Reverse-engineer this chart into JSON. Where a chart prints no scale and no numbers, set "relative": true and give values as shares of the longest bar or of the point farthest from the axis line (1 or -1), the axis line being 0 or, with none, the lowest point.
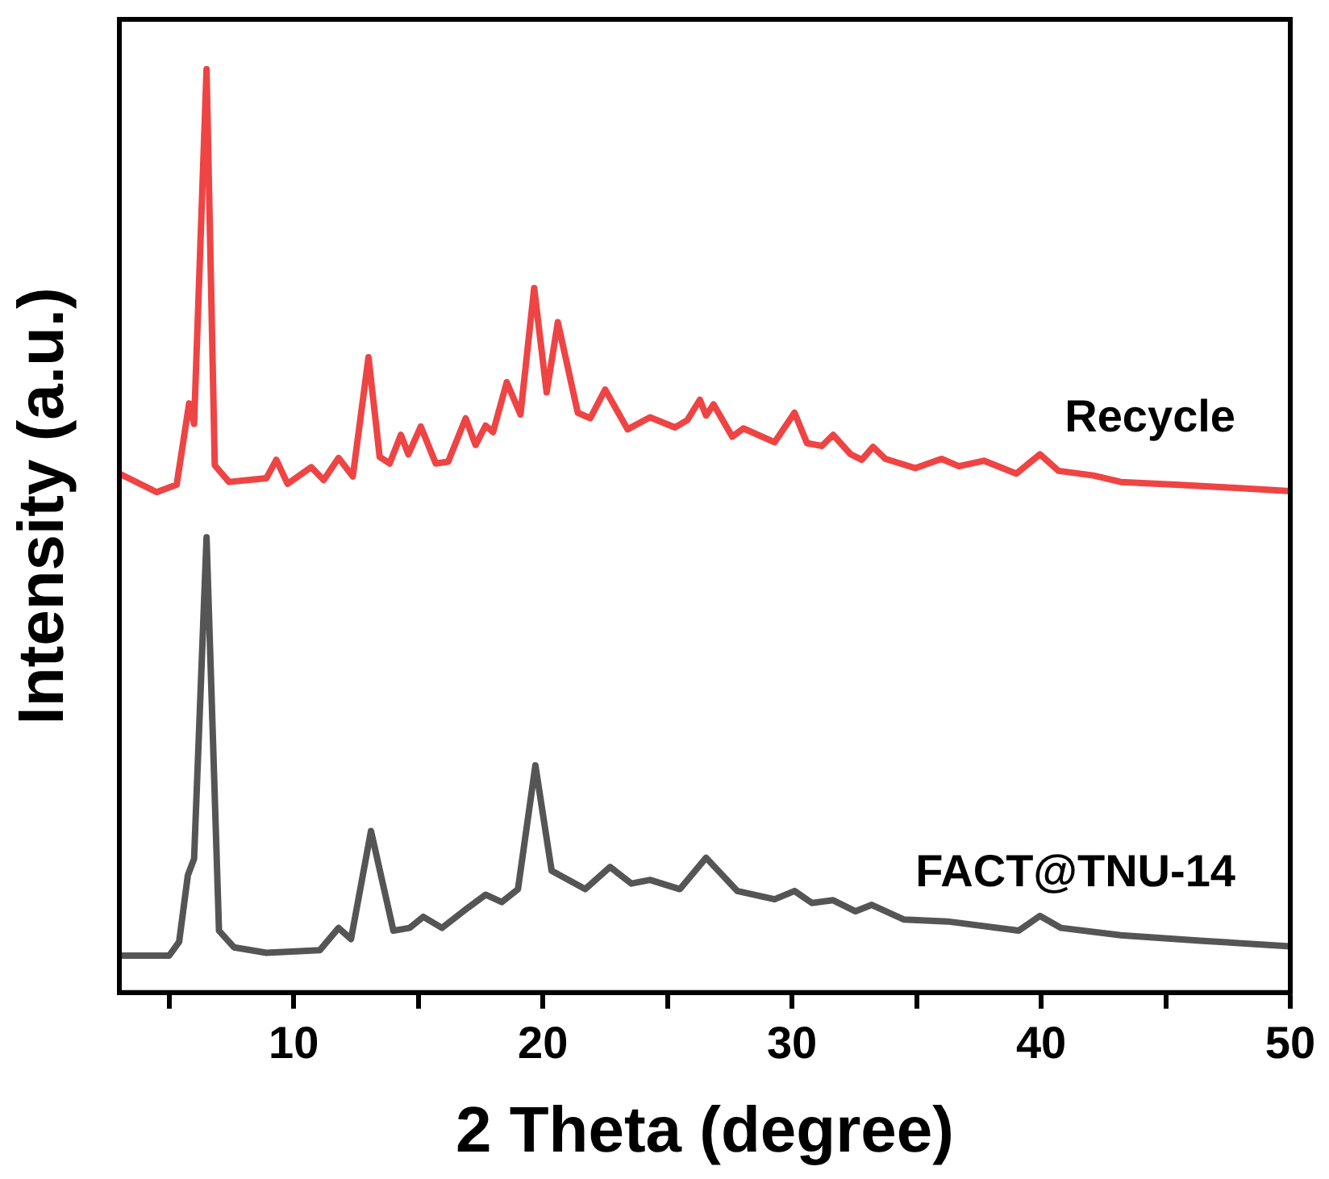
{
  "chart_data": {
    "type": "line",
    "xlabel": "2 Theta (degree)",
    "ylabel": "Intensity (a.u.)",
    "relative": true,
    "xlim": [
      3,
      50
    ],
    "xticks": [
      {
        "value": 5,
        "label": null
      },
      10,
      {
        "value": 15,
        "label": null
      },
      20,
      {
        "value": 25,
        "label": null
      },
      30,
      {
        "value": 35,
        "label": null
      },
      40,
      {
        "value": 45,
        "label": null
      },
      50
    ],
    "grid": false,
    "legend": false,
    "marker": "none",
    "line_style": "solid",
    "series": [
      {
        "name": "Recycle",
        "color": "#ef4444",
        "x": [
          3.0,
          4.5,
          5.3,
          5.8,
          6.0,
          6.5,
          6.83,
          7.4,
          8.9,
          9.3,
          9.75,
          10.7,
          11.2,
          11.8,
          12.37,
          13.0,
          13.45,
          13.85,
          14.3,
          14.6,
          15.1,
          15.7,
          16.2,
          16.9,
          17.3,
          17.7,
          18.0,
          18.55,
          19.1,
          19.65,
          20.15,
          20.6,
          21.4,
          21.9,
          22.5,
          23.4,
          24.3,
          25.3,
          25.8,
          26.3,
          26.55,
          26.85,
          27.6,
          28.05,
          29.3,
          30.1,
          30.6,
          31.2,
          31.65,
          32.35,
          32.8,
          33.25,
          33.75,
          34.95,
          36.0,
          36.7,
          37.7,
          39.0,
          39.95,
          40.7,
          42.1,
          43.2,
          45.4,
          47.5,
          50.0
        ],
        "values": [
          0.562,
          0.542,
          0.55,
          0.638,
          0.616,
          1.0,
          0.571,
          0.553,
          0.557,
          0.577,
          0.551,
          0.569,
          0.555,
          0.579,
          0.559,
          0.688,
          0.58,
          0.573,
          0.604,
          0.583,
          0.613,
          0.573,
          0.575,
          0.622,
          0.593,
          0.614,
          0.607,
          0.661,
          0.626,
          0.763,
          0.65,
          0.726,
          0.628,
          0.622,
          0.653,
          0.61,
          0.623,
          0.612,
          0.62,
          0.642,
          0.625,
          0.637,
          0.602,
          0.611,
          0.596,
          0.628,
          0.595,
          0.592,
          0.604,
          0.583,
          0.577,
          0.591,
          0.578,
          0.568,
          0.578,
          0.57,
          0.576,
          0.562,
          0.583,
          0.565,
          0.56,
          0.553,
          0.55,
          0.547,
          0.543
        ]
      },
      {
        "name": "FACT@TNU-14",
        "color": "#555555",
        "x": [
          3.0,
          5.0,
          5.4,
          5.75,
          6.0,
          6.5,
          7.0,
          7.6,
          8.9,
          11.05,
          11.8,
          12.3,
          13.1,
          14.0,
          14.65,
          15.2,
          15.95,
          17.0,
          17.7,
          18.35,
          19.0,
          19.7,
          20.35,
          21.7,
          22.7,
          23.55,
          24.3,
          25.5,
          26.55,
          27.8,
          29.3,
          30.1,
          30.8,
          31.65,
          32.55,
          33.2,
          34.5,
          36.25,
          39.1,
          39.95,
          40.8,
          43.2,
          46.5,
          50.0
        ],
        "values": [
          0.04,
          0.04,
          0.055,
          0.127,
          0.145,
          0.493,
          0.067,
          0.049,
          0.043,
          0.046,
          0.07,
          0.058,
          0.175,
          0.067,
          0.07,
          0.082,
          0.07,
          0.092,
          0.106,
          0.098,
          0.112,
          0.246,
          0.132,
          0.112,
          0.136,
          0.118,
          0.122,
          0.112,
          0.146,
          0.11,
          0.101,
          0.11,
          0.097,
          0.1,
          0.088,
          0.095,
          0.079,
          0.077,
          0.067,
          0.083,
          0.07,
          0.062,
          0.056,
          0.05
        ]
      }
    ]
  }
}
